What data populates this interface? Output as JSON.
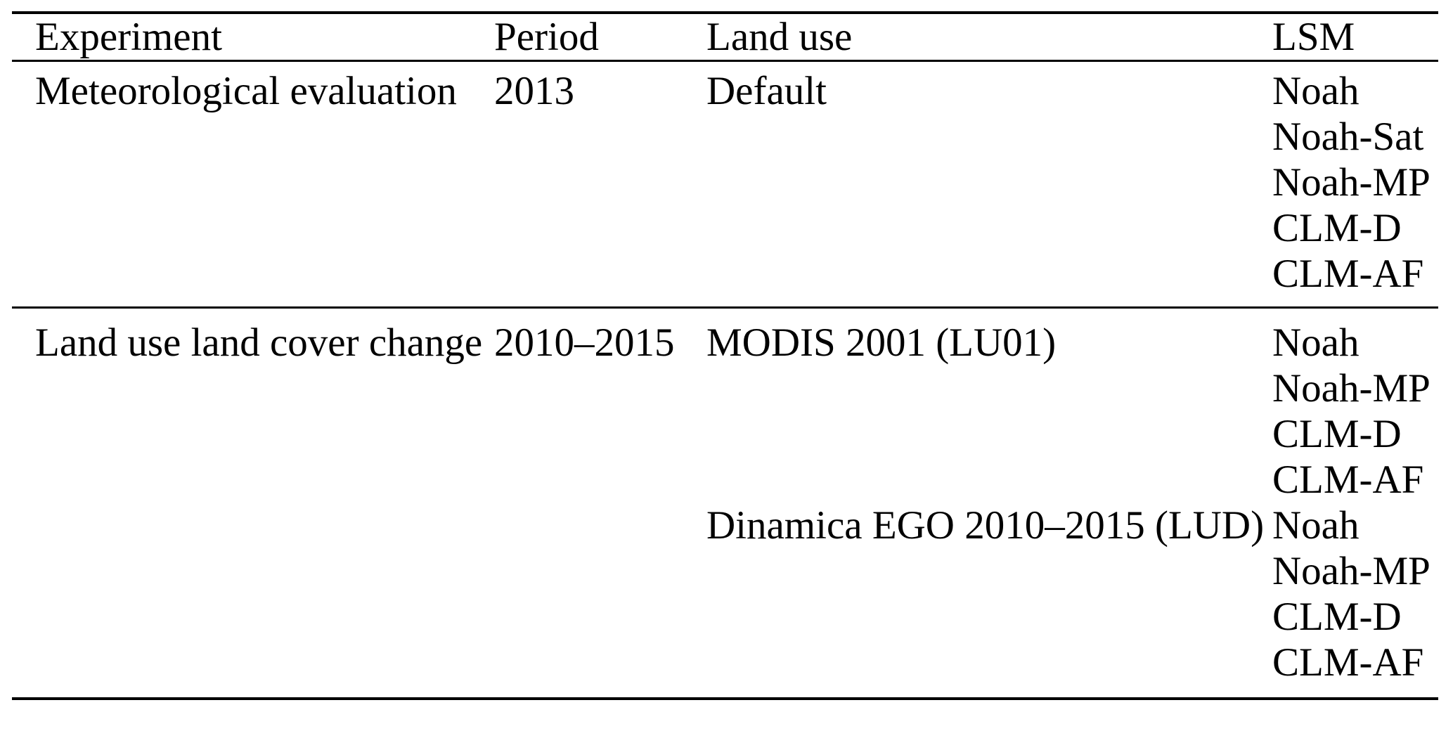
{
  "table": {
    "headers": {
      "experiment": "Experiment",
      "period": "Period",
      "land_use": "Land use",
      "lsm": "LSM"
    },
    "row1": {
      "experiment": "Meteorological evaluation",
      "period": "2013",
      "land_use": "Default",
      "lsm": [
        "Noah",
        "Noah-Sat",
        "Noah-MP",
        "CLM-D",
        "CLM-AF"
      ]
    },
    "row2": {
      "experiment": "Land use land cover change",
      "period": "2010–2015",
      "groups": [
        {
          "land_use": "MODIS 2001 (LU01)",
          "lsm": [
            "Noah",
            "Noah-MP",
            "CLM-D",
            "CLM-AF"
          ]
        },
        {
          "land_use": "Dinamica EGO 2010–2015 (LUD)",
          "lsm": [
            "Noah",
            "Noah-MP",
            "CLM-D",
            "CLM-AF"
          ]
        }
      ]
    },
    "colors": {
      "text": "#000000",
      "rule": "#000000",
      "background": "#ffffff"
    }
  }
}
